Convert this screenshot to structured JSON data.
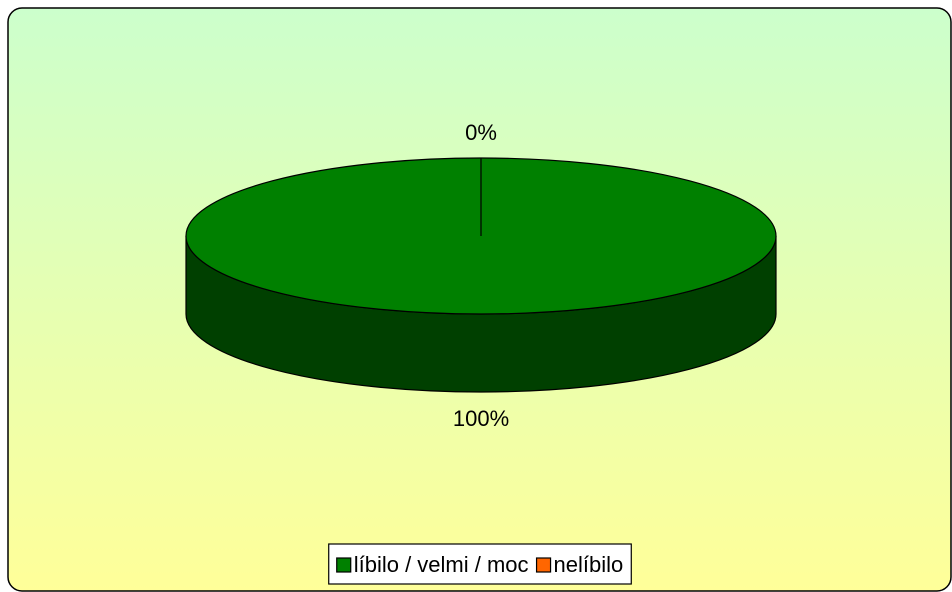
{
  "chart_data": {
    "type": "pie",
    "categories": [
      "líbilo / velmi / moc",
      "nelíbilo"
    ],
    "values": [
      100,
      0
    ],
    "value_labels": [
      "100%",
      "0%"
    ],
    "colors": [
      "#008000",
      "#ff6600"
    ],
    "legend": "bottom"
  }
}
